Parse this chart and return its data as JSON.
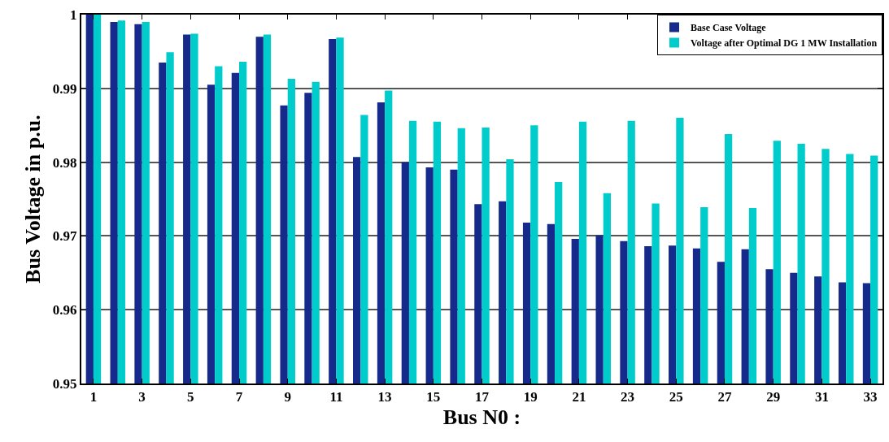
{
  "chart_data": {
    "type": "bar",
    "xlabel": "Bus N0 :",
    "ylabel": "Bus Voltage in p.u.",
    "x": [
      1,
      2,
      3,
      4,
      5,
      6,
      7,
      8,
      9,
      10,
      11,
      12,
      13,
      14,
      15,
      16,
      17,
      18,
      19,
      20,
      21,
      22,
      23,
      24,
      25,
      26,
      27,
      28,
      29,
      30,
      31,
      32,
      33
    ],
    "xlim": [
      0.5,
      33.5
    ],
    "xticks": [
      1,
      3,
      5,
      7,
      9,
      11,
      13,
      15,
      17,
      19,
      21,
      23,
      25,
      27,
      29,
      31,
      33
    ],
    "series": [
      {
        "name": "Base Case Voltage",
        "color": "#152a8a",
        "values": [
          1.0,
          0.999,
          0.9987,
          0.9935,
          0.9973,
          0.9905,
          0.9921,
          0.997,
          0.9877,
          0.9894,
          0.9967,
          0.9807,
          0.9881,
          0.98,
          0.9793,
          0.979,
          0.9743,
          0.9747,
          0.9718,
          0.9716,
          0.9696,
          0.9701,
          0.9693,
          0.9686,
          0.9687,
          0.9683,
          0.9665,
          0.9682,
          0.9655,
          0.965,
          0.9645,
          0.9637,
          0.9636
        ]
      },
      {
        "name": "Voltage after Optimal DG 1 MW Installation",
        "color": "#00cccc",
        "values": [
          1.0,
          0.9992,
          0.999,
          0.9949,
          0.9974,
          0.993,
          0.9936,
          0.9973,
          0.9913,
          0.9909,
          0.9969,
          0.9864,
          0.9897,
          0.9856,
          0.9855,
          0.9846,
          0.9847,
          0.9804,
          0.985,
          0.9773,
          0.9855,
          0.9758,
          0.9856,
          0.9744,
          0.986,
          0.9739,
          0.9838,
          0.9738,
          0.9829,
          0.9825,
          0.9818,
          0.9811,
          0.9809
        ]
      }
    ],
    "ylim": [
      0.95,
      1
    ],
    "yticks": [
      0.95,
      0.96,
      0.97,
      0.98,
      0.99,
      1
    ],
    "grid": "y",
    "legend": "top right"
  }
}
